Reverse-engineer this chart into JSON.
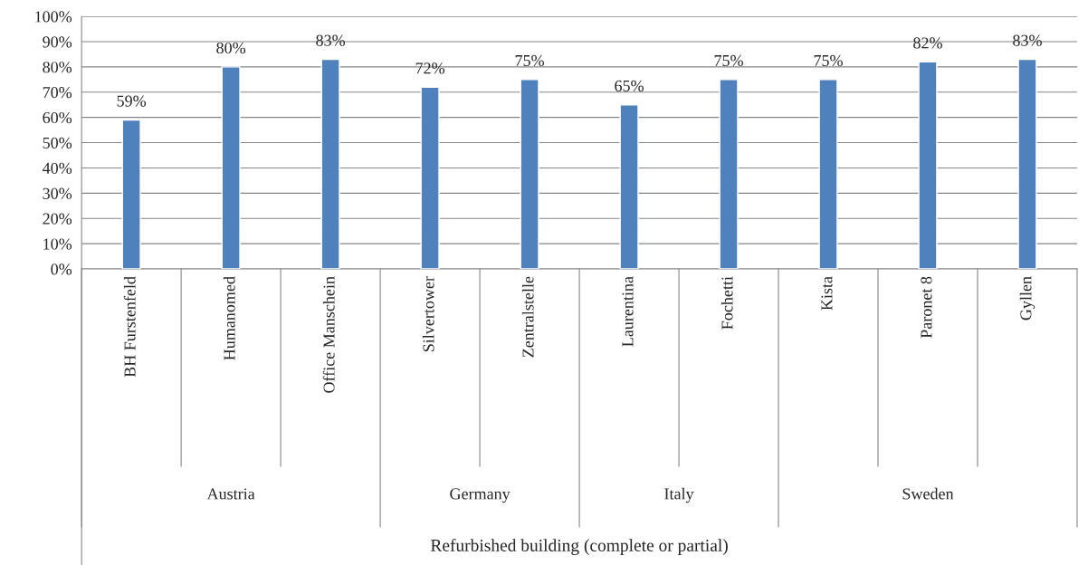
{
  "chart_data": {
    "type": "bar",
    "categories": [
      "BH Furstenfeld",
      "Humanomed",
      "Office Manschein",
      "Silvertower",
      "Zentralstelle",
      "Laurentina",
      "Fochetti",
      "Kista",
      "Paronet 8",
      "Gyllen"
    ],
    "values": [
      59,
      80,
      83,
      72,
      75,
      65,
      75,
      75,
      82,
      83
    ],
    "value_labels": [
      "59%",
      "80%",
      "83%",
      "72%",
      "75%",
      "65%",
      "75%",
      "75%",
      "82%",
      "83%"
    ],
    "color": "#4f81bd",
    "ylim": [
      0,
      100
    ],
    "yticks": [
      {
        "value": 0,
        "label": "0%"
      },
      {
        "value": 10,
        "label": "10%"
      },
      {
        "value": 20,
        "label": "20%"
      },
      {
        "value": 30,
        "label": "30%"
      },
      {
        "value": 40,
        "label": "40%"
      },
      {
        "value": 50,
        "label": "50%"
      },
      {
        "value": 60,
        "label": "60%"
      },
      {
        "value": 70,
        "label": "70%"
      },
      {
        "value": 80,
        "label": "80%"
      },
      {
        "value": 90,
        "label": "90%"
      },
      {
        "value": 100,
        "label": "100%"
      }
    ],
    "grid": "y",
    "annotations": [
      "Austria",
      "Germany",
      "Italy",
      "Sweden",
      "Refurbished building (complete or partial)"
    ]
  }
}
